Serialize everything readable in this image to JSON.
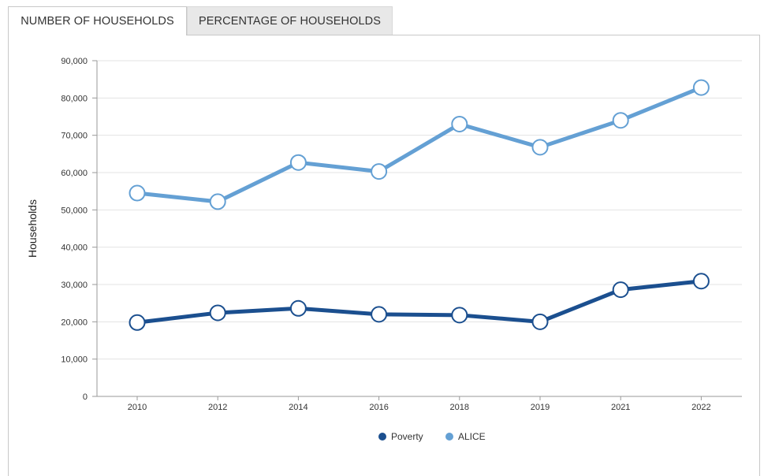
{
  "tabs": [
    {
      "label": "NUMBER OF HOUSEHOLDS",
      "active": true
    },
    {
      "label": "PERCENTAGE OF HOUSEHOLDS",
      "active": false
    }
  ],
  "chart_data": {
    "type": "line",
    "title": "",
    "xlabel": "",
    "ylabel": "Households",
    "categories": [
      "2010",
      "2012",
      "2014",
      "2016",
      "2018",
      "2019",
      "2021",
      "2022"
    ],
    "ylim": [
      0,
      90000
    ],
    "y_ticks": [
      0,
      10000,
      20000,
      30000,
      40000,
      50000,
      60000,
      70000,
      80000,
      90000
    ],
    "y_tick_labels": [
      "0",
      "10,000",
      "20,000",
      "30,000",
      "40,000",
      "50,000",
      "60,000",
      "70,000",
      "80,000",
      "90,000"
    ],
    "grid": true,
    "legend_position": "bottom",
    "series": [
      {
        "name": "Poverty",
        "color": "#1b4f8f",
        "values": [
          19800,
          22400,
          23600,
          22000,
          21800,
          20000,
          28600,
          30900
        ]
      },
      {
        "name": "ALICE",
        "color": "#64a0d4",
        "values": [
          54500,
          52200,
          62700,
          60300,
          73000,
          66800,
          74000,
          82800
        ]
      }
    ]
  }
}
